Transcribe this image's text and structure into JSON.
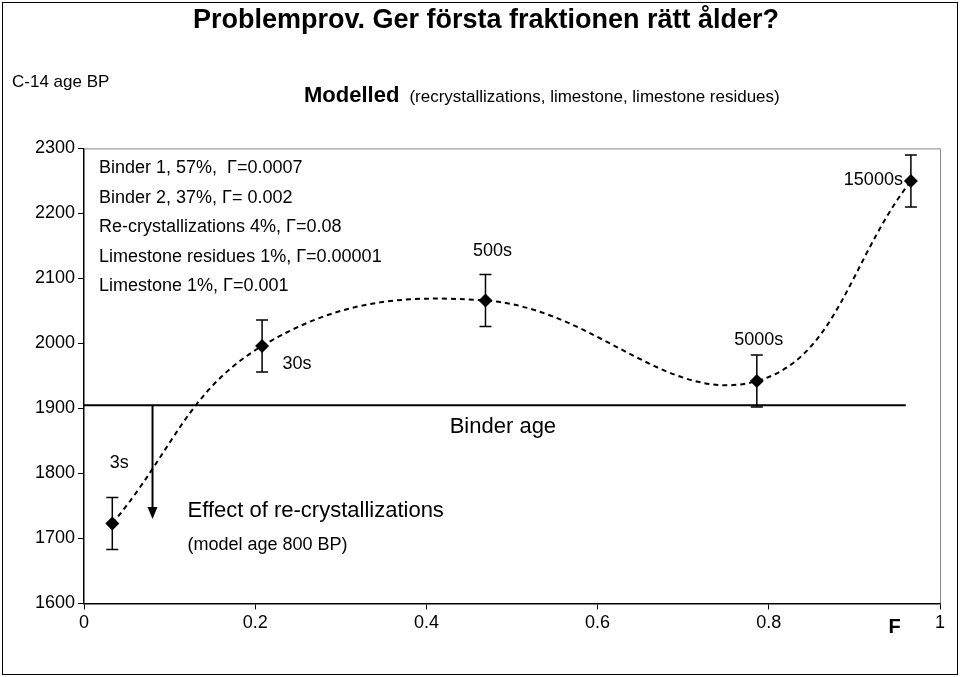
{
  "chart_data": {
    "type": "scatter",
    "title": "Problemprov. Ger första fraktionen rätt ålder?",
    "subtitle": {
      "bold": "Modelled",
      "text": "(recrystallizations, limestone, limestone residues)"
    },
    "y_label": "C-14 age BP",
    "x_label": "F",
    "xlim": [
      0,
      1
    ],
    "xticks": [
      0,
      0.2,
      0.4,
      0.6,
      0.8,
      1
    ],
    "ylim": [
      1600,
      2300
    ],
    "yticks": [
      1600,
      1700,
      1800,
      1900,
      2000,
      2100,
      2200,
      2300
    ],
    "grid": false,
    "series": [
      {
        "color": "#000000",
        "marker": "diamond",
        "line_style": "dashed",
        "x": [
          0.033,
          0.208,
          0.469,
          0.786,
          0.966
        ],
        "values": [
          1723,
          1996,
          2066,
          1942,
          2250
        ],
        "errors": [
          40,
          40,
          40,
          40,
          40
        ],
        "point_labels": [
          "3s",
          "30s",
          "500s",
          "5000s",
          "15000s"
        ]
      }
    ],
    "text_box": [
      "Binder 1, 57%,  Γ=0.0007",
      "Binder 2, 37%, Γ= 0.002",
      "Re-crystallizations 4%, Γ=0.08",
      "Limestone residues 1%, Γ=0.00001",
      "Limestone 1%, Γ=0.001"
    ],
    "reference_line": {
      "y": 1905,
      "x_end": 0.96,
      "label": "Binder age"
    },
    "arrow": {
      "x": 0.08,
      "y_start": 1905,
      "y_end": 1730,
      "label": "Effect of re-crystallizations",
      "note": "(model age 800 BP)"
    }
  }
}
